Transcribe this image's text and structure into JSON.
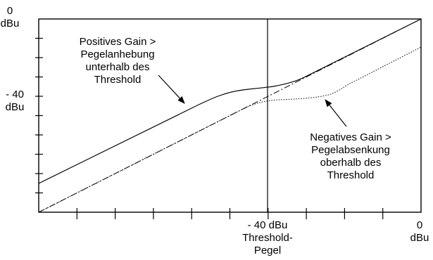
{
  "diagram": {
    "y_axis": {
      "top_label_line1": "0",
      "top_label_line2": "dBu",
      "mid_label_line1": "- 40",
      "mid_label_line2": "dBu"
    },
    "x_axis": {
      "threshold_label_line1": "- 40 dBu",
      "threshold_label_line2": "Threshold-",
      "threshold_label_line3": "Pegel",
      "right_label_line1": "0",
      "right_label_line2": "dBu"
    },
    "annotations": {
      "positive": {
        "line1": "Positives Gain >",
        "line2": "Pegelanhebung",
        "line3": "unterhalb des",
        "line4": "Threshold"
      },
      "negative": {
        "line1": "Negatives Gain >",
        "line2": "Pegelabsenkung",
        "line3": "oberhalb des",
        "line4": "Threshold"
      }
    },
    "curves": [
      {
        "name": "unity-line",
        "style": "dash-dot"
      },
      {
        "name": "upward-expansion-curve",
        "style": "solid"
      },
      {
        "name": "downward-compression-curve",
        "style": "dotted"
      }
    ],
    "colors": {
      "stroke": "#000000",
      "background": "#ffffff"
    }
  }
}
